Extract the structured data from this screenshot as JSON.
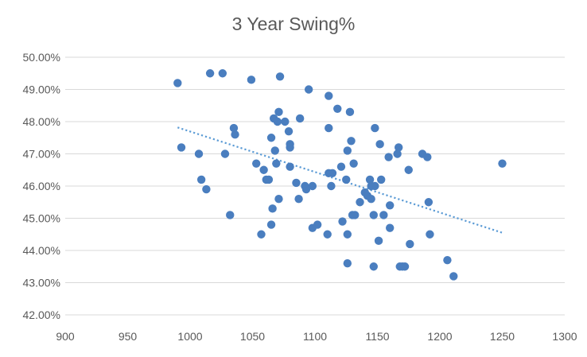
{
  "chart_data": {
    "type": "scatter",
    "title": "3 Year Swing%",
    "xlabel": "",
    "ylabel": "",
    "xlim": [
      900,
      1300
    ],
    "ylim": [
      0.42,
      0.5
    ],
    "x_ticks": [
      900,
      950,
      1000,
      1050,
      1100,
      1150,
      1200,
      1250,
      1300
    ],
    "x_tick_labels": [
      "900",
      "950",
      "1000",
      "1050",
      "1100",
      "1150",
      "1200",
      "1250",
      "1300"
    ],
    "y_ticks": [
      0.42,
      0.43,
      0.44,
      0.45,
      0.46,
      0.47,
      0.48,
      0.49,
      0.5
    ],
    "y_tick_labels": [
      "42.00%",
      "43.00%",
      "44.00%",
      "45.00%",
      "46.00%",
      "47.00%",
      "48.00%",
      "49.00%",
      "50.00%"
    ],
    "grid": "horizontal",
    "legend": "none",
    "marker_color": "#4a7ebf",
    "trendline": {
      "type": "linear",
      "color": "#5b9bd5",
      "x": [
        990,
        1250
      ],
      "y": [
        0.4782,
        0.4455
      ]
    },
    "points": [
      {
        "x": 990,
        "y": 0.492
      },
      {
        "x": 993,
        "y": 0.472
      },
      {
        "x": 1007,
        "y": 0.47
      },
      {
        "x": 1009,
        "y": 0.462
      },
      {
        "x": 1013,
        "y": 0.459
      },
      {
        "x": 1016,
        "y": 0.495
      },
      {
        "x": 1026,
        "y": 0.495
      },
      {
        "x": 1028,
        "y": 0.47
      },
      {
        "x": 1032,
        "y": 0.451
      },
      {
        "x": 1035,
        "y": 0.478
      },
      {
        "x": 1036,
        "y": 0.476
      },
      {
        "x": 1049,
        "y": 0.493
      },
      {
        "x": 1053,
        "y": 0.467
      },
      {
        "x": 1057,
        "y": 0.445
      },
      {
        "x": 1059,
        "y": 0.465
      },
      {
        "x": 1061,
        "y": 0.462
      },
      {
        "x": 1063,
        "y": 0.462
      },
      {
        "x": 1065,
        "y": 0.475
      },
      {
        "x": 1065,
        "y": 0.448
      },
      {
        "x": 1066,
        "y": 0.453
      },
      {
        "x": 1067,
        "y": 0.481
      },
      {
        "x": 1068,
        "y": 0.471
      },
      {
        "x": 1069,
        "y": 0.467
      },
      {
        "x": 1070,
        "y": 0.48
      },
      {
        "x": 1071,
        "y": 0.483
      },
      {
        "x": 1071,
        "y": 0.456
      },
      {
        "x": 1072,
        "y": 0.494
      },
      {
        "x": 1076,
        "y": 0.48
      },
      {
        "x": 1079,
        "y": 0.477
      },
      {
        "x": 1080,
        "y": 0.473
      },
      {
        "x": 1080,
        "y": 0.472
      },
      {
        "x": 1080,
        "y": 0.466
      },
      {
        "x": 1085,
        "y": 0.461
      },
      {
        "x": 1087,
        "y": 0.456
      },
      {
        "x": 1088,
        "y": 0.481
      },
      {
        "x": 1092,
        "y": 0.46
      },
      {
        "x": 1093,
        "y": 0.459
      },
      {
        "x": 1095,
        "y": 0.49
      },
      {
        "x": 1098,
        "y": 0.46
      },
      {
        "x": 1098,
        "y": 0.447
      },
      {
        "x": 1102,
        "y": 0.448
      },
      {
        "x": 1110,
        "y": 0.445
      },
      {
        "x": 1111,
        "y": 0.488
      },
      {
        "x": 1111,
        "y": 0.478
      },
      {
        "x": 1111,
        "y": 0.464
      },
      {
        "x": 1113,
        "y": 0.46
      },
      {
        "x": 1114,
        "y": 0.464
      },
      {
        "x": 1118,
        "y": 0.484
      },
      {
        "x": 1121,
        "y": 0.466
      },
      {
        "x": 1122,
        "y": 0.449
      },
      {
        "x": 1125,
        "y": 0.462
      },
      {
        "x": 1126,
        "y": 0.471
      },
      {
        "x": 1126,
        "y": 0.445
      },
      {
        "x": 1126,
        "y": 0.436
      },
      {
        "x": 1128,
        "y": 0.483
      },
      {
        "x": 1129,
        "y": 0.474
      },
      {
        "x": 1130,
        "y": 0.451
      },
      {
        "x": 1131,
        "y": 0.467
      },
      {
        "x": 1132,
        "y": 0.451
      },
      {
        "x": 1136,
        "y": 0.455
      },
      {
        "x": 1140,
        "y": 0.458
      },
      {
        "x": 1142,
        "y": 0.457
      },
      {
        "x": 1144,
        "y": 0.462
      },
      {
        "x": 1145,
        "y": 0.46
      },
      {
        "x": 1145,
        "y": 0.456
      },
      {
        "x": 1147,
        "y": 0.451
      },
      {
        "x": 1147,
        "y": 0.435
      },
      {
        "x": 1148,
        "y": 0.478
      },
      {
        "x": 1148,
        "y": 0.46
      },
      {
        "x": 1151,
        "y": 0.443
      },
      {
        "x": 1152,
        "y": 0.473
      },
      {
        "x": 1153,
        "y": 0.462
      },
      {
        "x": 1155,
        "y": 0.451
      },
      {
        "x": 1159,
        "y": 0.469
      },
      {
        "x": 1160,
        "y": 0.454
      },
      {
        "x": 1160,
        "y": 0.447
      },
      {
        "x": 1166,
        "y": 0.47
      },
      {
        "x": 1167,
        "y": 0.472
      },
      {
        "x": 1168,
        "y": 0.435
      },
      {
        "x": 1170,
        "y": 0.435
      },
      {
        "x": 1172,
        "y": 0.435
      },
      {
        "x": 1175,
        "y": 0.465
      },
      {
        "x": 1176,
        "y": 0.442
      },
      {
        "x": 1186,
        "y": 0.47
      },
      {
        "x": 1190,
        "y": 0.469
      },
      {
        "x": 1191,
        "y": 0.455
      },
      {
        "x": 1192,
        "y": 0.445
      },
      {
        "x": 1206,
        "y": 0.437
      },
      {
        "x": 1211,
        "y": 0.432
      },
      {
        "x": 1250,
        "y": 0.467
      }
    ]
  }
}
